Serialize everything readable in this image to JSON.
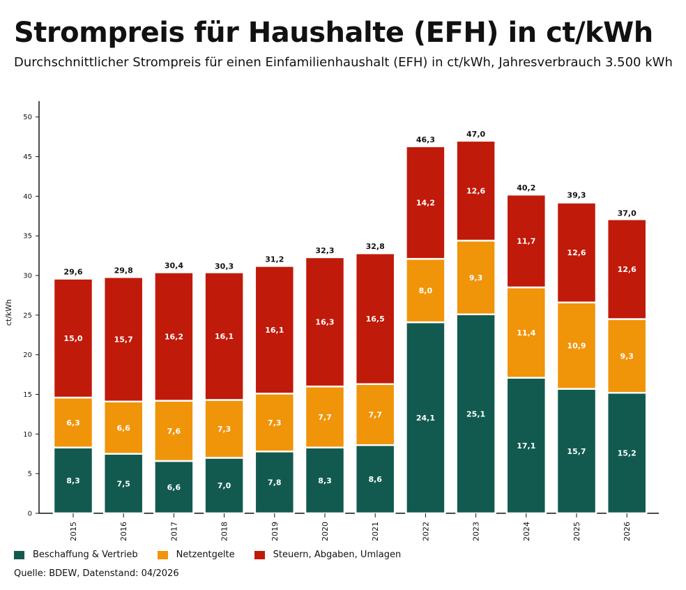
{
  "title": "Strompreis für Haushalte (EFH) in ct/kWh",
  "subtitle": "Durchschnittlicher Strompreis für einen Einfamilienhaushalt (EFH) in ct/kWh, Jahresverbrauch 3.500 kWh",
  "source": "Quelle:  BDEW, Datenstand: 04/2026",
  "colors": {
    "series1": "#125a4f",
    "series2": "#f0940a",
    "series3": "#c01a0a"
  },
  "chart_data": {
    "type": "bar",
    "stacked": true,
    "categories": [
      "2015",
      "2016",
      "2017",
      "2018",
      "2019",
      "2020",
      "2021",
      "2022",
      "2023",
      "2024",
      "2025",
      "2026"
    ],
    "series": [
      {
        "name": "Beschaffung & Vertrieb",
        "values": [
          8.3,
          7.5,
          6.6,
          7.0,
          7.8,
          8.3,
          8.6,
          24.1,
          25.1,
          17.1,
          15.7,
          15.2
        ],
        "labels": [
          "8,3",
          "7,5",
          "6,6",
          "7,0",
          "7,8",
          "8,3",
          "8,6",
          "24,1",
          "25,1",
          "17,1",
          "15,7",
          "15,2"
        ]
      },
      {
        "name": "Netzentgelte",
        "values": [
          6.3,
          6.6,
          7.6,
          7.3,
          7.3,
          7.7,
          7.7,
          8.0,
          9.3,
          11.4,
          10.9,
          9.3
        ],
        "labels": [
          "6,3",
          "6,6",
          "7,6",
          "7,3",
          "7,3",
          "7,7",
          "7,7",
          "8,0",
          "9,3",
          "11,4",
          "10,9",
          "9,3"
        ]
      },
      {
        "name": "Steuern, Abgaben, Umlagen",
        "values": [
          15.0,
          15.7,
          16.2,
          16.1,
          16.1,
          16.3,
          16.5,
          14.2,
          12.6,
          11.7,
          12.6,
          12.6
        ],
        "labels": [
          "15,0",
          "15,7",
          "16,2",
          "16,1",
          "16,1",
          "16,3",
          "16,5",
          "14,2",
          "12,6",
          "11,7",
          "12,6",
          "12,6"
        ]
      }
    ],
    "totals": [
      29.6,
      29.8,
      30.4,
      30.3,
      31.2,
      32.3,
      32.8,
      46.3,
      47.0,
      40.2,
      39.3,
      37.0
    ],
    "total_labels": [
      "29,6",
      "29,8",
      "30,4",
      "30,3",
      "31,2",
      "32,3",
      "32,8",
      "46,3",
      "47,0",
      "40,2",
      "39,3",
      "37,0"
    ],
    "ylabel": "ct/kWh",
    "xlabel": "",
    "ylim": [
      0,
      52
    ],
    "yticks": [
      0,
      5,
      10,
      15,
      20,
      25,
      30,
      35,
      40,
      45,
      50
    ],
    "grid": false,
    "legend_position": "bottom-left"
  }
}
